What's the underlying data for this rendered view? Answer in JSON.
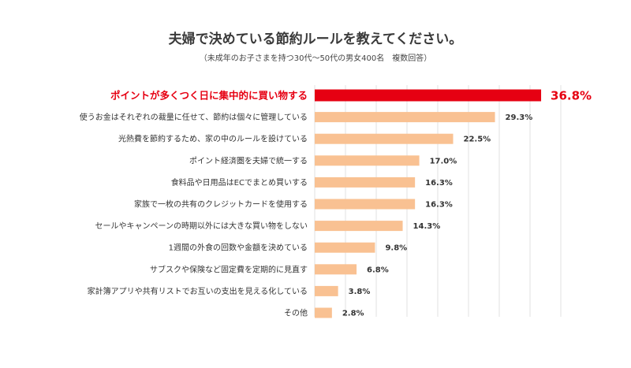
{
  "chart_data": {
    "type": "bar",
    "orientation": "horizontal",
    "title": "夫婦で決めている節約ルールを教えてください。",
    "subtitle": "（未成年のお子さまを持つ30代〜50代の男女400名　複数回答）",
    "categories": [
      "ポイントが多くつく日に集中的に買い物する",
      "使うお金はそれぞれの裁量に任せて、節約は個々に管理している",
      "光熱費を節約するため、家の中のルールを設けている",
      "ポイント経済圏を夫婦で統一する",
      "食料品や日用品はECでまとめ買いする",
      "家族で一枚の共有のクレジットカードを使用する",
      "セールやキャンペーンの時期以外には大きな買い物をしない",
      "1週間の外食の回数や金額を決めている",
      "サブスクや保険など固定費を定期的に見直す",
      "家計簿アプリや共有リストでお互いの支出を見える化している",
      "その他"
    ],
    "values": [
      36.8,
      29.3,
      22.5,
      17.0,
      16.3,
      16.3,
      14.3,
      9.8,
      6.8,
      3.8,
      2.8
    ],
    "value_labels": [
      "36.8%",
      "29.3%",
      "22.5%",
      "17.0%",
      "16.3%",
      "16.3%",
      "14.3%",
      "9.8%",
      "6.8%",
      "3.8%",
      "2.8%"
    ],
    "highlight_index": 0,
    "xlim": [
      0,
      40
    ],
    "grid": true,
    "legend": "none",
    "colors": {
      "bar": "#f9c192",
      "highlight": "#e60012",
      "grid": "#e0e0e0"
    }
  }
}
